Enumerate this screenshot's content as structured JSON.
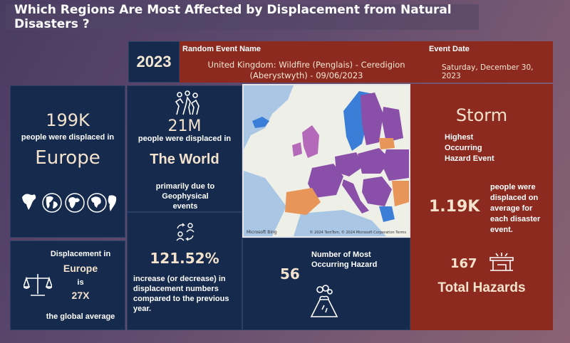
{
  "title": "Which Regions Are Most Affected by Displacement from Natural Disasters ?",
  "header": {
    "year": "2023",
    "event_name_label": "Random Event Name",
    "event_name": "United Kingdom: Wildfire (Penglais) - Ceredigion (Aberystwyth) - 09/06/2023",
    "event_date_label": "Event Date",
    "event_date": "Saturday, December 30, 2023"
  },
  "europe_card": {
    "value": "199K",
    "caption": "people were displaced in",
    "region": "Europe"
  },
  "world_card": {
    "value": "21M",
    "caption": "people were displaced in",
    "region": "The World",
    "note": "primarily due to Geophysical events"
  },
  "growth_card": {
    "value": "121.52%",
    "caption": "increase (or decrease) in displacement numbers compared to the previous year."
  },
  "avg_card": {
    "line1": "Displacement in",
    "region": "Europe",
    "is": "is",
    "multiplier": "27X",
    "line2": "the global average"
  },
  "map": {
    "attribution_left": "Microsoft Bing",
    "attribution_right": "© 2024 TomTom, © 2024 Microsoft Corporation  Terms"
  },
  "hazard_card": {
    "value": "56",
    "caption": "Number of Most Occurring Hazard"
  },
  "storm_card": {
    "hazard": "Storm",
    "hazard_caption": "Highest Occurring Hazard Event",
    "avg_value": "1.19K",
    "avg_caption": "people were displaced on average for each disaster event.",
    "total_value": "167",
    "total_label": "Total Hazards"
  },
  "colors": {
    "navy": "#152a4c",
    "red": "#8c2a20",
    "cream": "#f3e2cc",
    "map_purple": "#8a4fa8",
    "map_orange": "#e8955a",
    "map_blue": "#3a7ed8"
  }
}
